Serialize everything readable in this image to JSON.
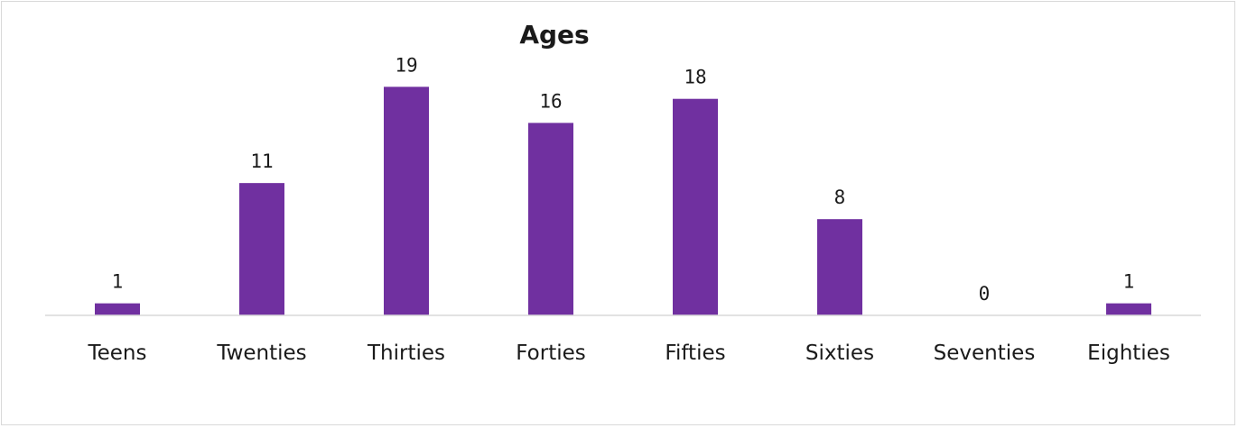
{
  "chart_data": {
    "type": "bar",
    "title": "Ages",
    "categories": [
      "Teens",
      "Twenties",
      "Thirties",
      "Forties",
      "Fifties",
      "Sixties",
      "Seventies",
      "Eighties"
    ],
    "values": [
      1,
      11,
      19,
      16,
      18,
      8,
      0,
      1
    ],
    "xlabel": "",
    "ylabel": "",
    "ylim": [
      0,
      20
    ],
    "grid": false,
    "legend": "none",
    "bar_color": "#7030a0",
    "axis_color": "#d9d9d9"
  }
}
